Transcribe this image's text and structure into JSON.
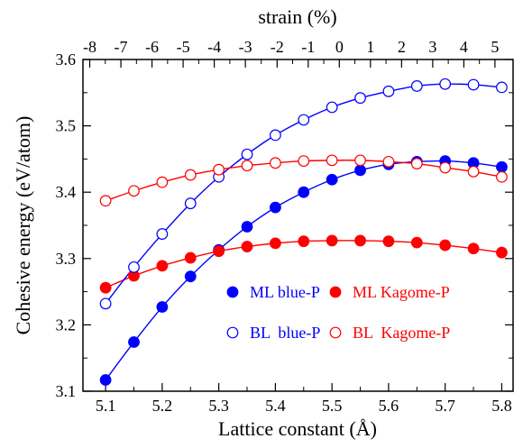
{
  "chart_data": {
    "type": "scatter",
    "title": "",
    "xlabel": "Lattice constant (Å)",
    "ylabel": "Cohesive energy (eV/atom)",
    "top_xlabel": "strain (%)",
    "xlim": [
      5.06,
      5.82
    ],
    "ylim": [
      3.1,
      3.6
    ],
    "x_ticks": [
      "5.1",
      "5.2",
      "5.3",
      "5.4",
      "5.5",
      "5.6",
      "5.7",
      "5.8"
    ],
    "y_ticks": [
      "3.1",
      "3.2",
      "3.3",
      "3.4",
      "3.5",
      "3.6"
    ],
    "top_ticks": [
      {
        "x": 5.072,
        "label": "-8"
      },
      {
        "x": 5.127,
        "label": "-7"
      },
      {
        "x": 5.182,
        "label": "-6"
      },
      {
        "x": 5.237,
        "label": "-5"
      },
      {
        "x": 5.292,
        "label": "-4"
      },
      {
        "x": 5.347,
        "label": "-3"
      },
      {
        "x": 5.403,
        "label": "-2"
      },
      {
        "x": 5.458,
        "label": "-1"
      },
      {
        "x": 5.513,
        "label": "0"
      },
      {
        "x": 5.568,
        "label": "1"
      },
      {
        "x": 5.623,
        "label": "2"
      },
      {
        "x": 5.678,
        "label": "3"
      },
      {
        "x": 5.733,
        "label": "4"
      },
      {
        "x": 5.788,
        "label": "5"
      }
    ],
    "grid": false,
    "legend_position": "bottom-right",
    "x": [
      5.1,
      5.15,
      5.2,
      5.25,
      5.3,
      5.35,
      5.4,
      5.45,
      5.5,
      5.55,
      5.6,
      5.65,
      5.7,
      5.75,
      5.8
    ],
    "series": [
      {
        "name": "ML blue-P",
        "color": "#0000ff",
        "marker": "filled",
        "values": [
          3.117,
          3.174,
          3.227,
          3.273,
          3.313,
          3.348,
          3.377,
          3.4,
          3.419,
          3.433,
          3.442,
          3.446,
          3.447,
          3.444,
          3.438
        ]
      },
      {
        "name": "ML Kagome-P",
        "color": "#ff0000",
        "marker": "filled",
        "values": [
          3.256,
          3.274,
          3.289,
          3.301,
          3.311,
          3.318,
          3.323,
          3.326,
          3.327,
          3.327,
          3.326,
          3.324,
          3.32,
          3.315,
          3.309
        ]
      },
      {
        "name": "BL  blue-P",
        "color": "#0000ff",
        "marker": "open",
        "values": [
          3.232,
          3.287,
          3.337,
          3.383,
          3.423,
          3.457,
          3.486,
          3.509,
          3.528,
          3.542,
          3.552,
          3.56,
          3.563,
          3.562,
          3.558
        ]
      },
      {
        "name": "BL  Kagome-P",
        "color": "#ff0000",
        "marker": "open",
        "values": [
          3.387,
          3.402,
          3.415,
          3.426,
          3.434,
          3.44,
          3.444,
          3.447,
          3.448,
          3.448,
          3.446,
          3.443,
          3.437,
          3.431,
          3.423
        ]
      }
    ]
  }
}
